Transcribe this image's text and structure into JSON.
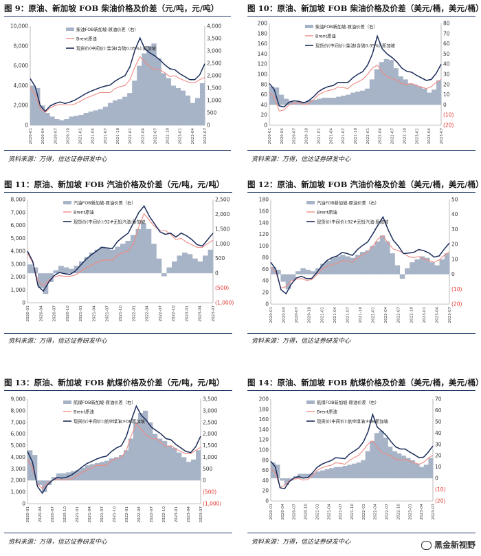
{
  "source_text": "资料来源：万得，信达证券研发中心",
  "watermark": "黑金新视野",
  "colors": {
    "spread": "#a7b3c6",
    "brent": "#f08a82",
    "spot": "#1a2b5a",
    "title_line": "#1f3864",
    "negative_label": "#e0302c"
  },
  "x_labels": [
    "2020-01",
    "2020-04",
    "2020-07",
    "2020-10",
    "2021-01",
    "2021-04",
    "2021-07",
    "2021-10",
    "2022-01",
    "2022-04",
    "2022-07",
    "2022-10",
    "2023-01",
    "2023-04",
    "2023-07"
  ],
  "chart_data": [
    {
      "id": "fig9",
      "type": "area+line",
      "title": "图 9：原油、新加坡 FOB 柴油价格及价差（元/吨，元/吨）",
      "left_ticks": [
        "10,000",
        "8,000",
        "6,000",
        "4,000",
        "2,000",
        "0"
      ],
      "right_ticks": [
        "4,000",
        "3,500",
        "3,000",
        "2,500",
        "2,000",
        "1,500",
        "1,000",
        "500",
        "0"
      ],
      "right_neg_ticks": [],
      "ylim_left": [
        0,
        10000
      ],
      "ylim_right": [
        0,
        4000
      ],
      "legend": [
        "柴油FOB新加坡-原油价差（右）",
        "Brent原油",
        "现货价(中间价):柴油(含硫0.05%):新加坡"
      ],
      "series": [
        {
          "name": "spread",
          "axis": "right",
          "values": [
            1600,
            1500,
            800,
            500,
            350,
            250,
            200,
            250,
            350,
            380,
            420,
            500,
            550,
            600,
            650,
            750,
            900,
            1000,
            1050,
            1150,
            1300,
            1800,
            2400,
            2900,
            3200,
            3300,
            2700,
            2100,
            1900,
            1600,
            1500,
            1400,
            1200,
            900,
            1100,
            1700
          ]
        },
        {
          "name": "brent",
          "axis": "left",
          "values": [
            3850,
            3100,
            1700,
            1300,
            1750,
            2000,
            2100,
            2050,
            2050,
            2150,
            2400,
            2700,
            2900,
            3100,
            3300,
            3300,
            3300,
            3700,
            3900,
            4000,
            4600,
            5900,
            6900,
            6400,
            5900,
            5600,
            5600,
            5300,
            4900,
            5000,
            4700,
            4500,
            4300,
            4300,
            4600,
            4850
          ]
        },
        {
          "name": "spot",
          "axis": "left",
          "values": [
            4700,
            3900,
            2000,
            1400,
            1950,
            2200,
            2350,
            2200,
            2350,
            2550,
            2850,
            3150,
            3400,
            3600,
            3800,
            3950,
            4050,
            4450,
            4750,
            5000,
            5900,
            7600,
            8800,
            7700,
            7300,
            7000,
            6600,
            6100,
            5700,
            5600,
            5200,
            4900,
            4600,
            4600,
            5100,
            6200
          ]
        }
      ]
    },
    {
      "id": "fig10",
      "type": "area+line",
      "title": "图 10：原油、新加坡 FOB 柴油价格及价差（美元/桶，美元/桶）",
      "left_ticks": [
        "200",
        "180",
        "160",
        "140",
        "120",
        "100",
        "80",
        "60",
        "40",
        "20",
        "0"
      ],
      "right_ticks": [
        "80",
        "70",
        "60",
        "50",
        "40",
        "30",
        "20",
        "10",
        "0"
      ],
      "right_neg_ticks": [
        "(10)",
        "(20)"
      ],
      "ylim_left": [
        0,
        200
      ],
      "ylim_right": [
        -20,
        80
      ],
      "legend": [
        "柴油FOB新加坡-原油价差（右）",
        "Brent原油",
        "现货价(中间价):柴油(含硫0.05%):新加坡"
      ],
      "series": [
        {
          "name": "spread",
          "axis": "right",
          "values": [
            18,
            17,
            10,
            6,
            4,
            3,
            3,
            3,
            5,
            5,
            6,
            7,
            7,
            7,
            8,
            9,
            10,
            12,
            13,
            14,
            16,
            25,
            35,
            42,
            45,
            44,
            36,
            28,
            25,
            21,
            20,
            18,
            16,
            12,
            15,
            24
          ]
        },
        {
          "name": "brent",
          "axis": "left",
          "values": [
            64,
            55,
            28,
            30,
            40,
            43,
            44,
            41,
            42,
            50,
            60,
            65,
            68,
            70,
            75,
            74,
            72,
            80,
            85,
            90,
            100,
            112,
            118,
            105,
            95,
            92,
            88,
            82,
            80,
            82,
            78,
            75,
            72,
            76,
            84,
            90
          ]
        },
        {
          "name": "spot",
          "axis": "left",
          "values": [
            82,
            70,
            38,
            36,
            45,
            48,
            47,
            44,
            48,
            56,
            66,
            72,
            76,
            78,
            84,
            84,
            84,
            93,
            100,
            105,
            118,
            140,
            175,
            150,
            140,
            133,
            124,
            112,
            106,
            104,
            98,
            93,
            88,
            90,
            102,
            120
          ]
        }
      ]
    },
    {
      "id": "fig11",
      "type": "area+line",
      "title": "图 11：原油、新加坡 FOB 汽油价格及价差（元/吨，元/吨）",
      "left_ticks": [
        "8,000",
        "7,000",
        "6,000",
        "5,000",
        "4,000",
        "3,000",
        "2,000",
        "1,000",
        "0"
      ],
      "right_ticks": [
        "2,500",
        "2,000",
        "1,500",
        "1,000",
        "500",
        "0"
      ],
      "right_neg_ticks": [
        "(500)",
        "(1,000)"
      ],
      "ylim_left": [
        0,
        8000
      ],
      "ylim_right": [
        -1000,
        2500
      ],
      "legend": [
        "汽油FOB新加坡-原油价差（右）",
        "Brent原油",
        "现货价(中间价):92#无铅汽油:新加坡"
      ],
      "series": [
        {
          "name": "spread",
          "axis": "right",
          "values": [
            300,
            200,
            -500,
            -700,
            -300,
            100,
            250,
            200,
            150,
            250,
            400,
            550,
            700,
            800,
            900,
            850,
            800,
            900,
            1000,
            1100,
            1300,
            1500,
            1700,
            1500,
            1000,
            500,
            -100,
            200,
            400,
            600,
            700,
            650,
            500,
            400,
            600,
            800
          ]
        },
        {
          "name": "brent",
          "axis": "left",
          "values": [
            3850,
            3100,
            1700,
            1300,
            1750,
            2000,
            2100,
            2050,
            2050,
            2150,
            2400,
            2700,
            2900,
            3100,
            3300,
            3300,
            3300,
            3700,
            3900,
            4000,
            4600,
            5900,
            6900,
            6400,
            5900,
            5600,
            5600,
            5300,
            4900,
            5000,
            4700,
            4500,
            4300,
            4300,
            4600,
            4850
          ]
        },
        {
          "name": "spot",
          "axis": "left",
          "values": [
            4000,
            3200,
            1300,
            900,
            1600,
            2100,
            2350,
            2250,
            2200,
            2450,
            2900,
            3350,
            3700,
            4000,
            4300,
            4250,
            4200,
            4750,
            5100,
            5400,
            6200,
            7000,
            7500,
            6700,
            6100,
            5500,
            5300,
            5400,
            5100,
            5400,
            5200,
            4900,
            4500,
            4400,
            4900,
            5400
          ]
        }
      ]
    },
    {
      "id": "fig12",
      "type": "area+line",
      "title": "图 12：原油、新加坡 FOB 汽油价格及价差（美元/桶，美元/桶）",
      "left_ticks": [
        "180",
        "160",
        "140",
        "120",
        "100",
        "80",
        "60",
        "40",
        "20",
        "0"
      ],
      "right_ticks": [
        "50",
        "40",
        "30",
        "20",
        "10",
        "0"
      ],
      "right_neg_ticks": [
        "(10)",
        "(20)"
      ],
      "ylim_left": [
        0,
        180
      ],
      "ylim_right": [
        -20,
        50
      ],
      "legend": [
        "汽油FOB新加坡-原油价差（右）",
        "Brent原油",
        "现货价(中间价):92#无铅汽油:新加坡"
      ],
      "series": [
        {
          "name": "spread",
          "axis": "right",
          "values": [
            5,
            3,
            -5,
            -10,
            -4,
            2,
            4,
            3,
            2,
            4,
            7,
            9,
            11,
            12,
            13,
            12,
            11,
            13,
            15,
            16,
            19,
            22,
            26,
            22,
            14,
            6,
            -3,
            4,
            8,
            10,
            12,
            11,
            8,
            6,
            10,
            14
          ]
        },
        {
          "name": "brent",
          "axis": "left",
          "values": [
            64,
            55,
            28,
            30,
            40,
            43,
            44,
            41,
            42,
            50,
            60,
            65,
            68,
            70,
            75,
            74,
            72,
            80,
            85,
            90,
            100,
            112,
            118,
            105,
            95,
            92,
            88,
            82,
            80,
            82,
            78,
            75,
            72,
            76,
            84,
            90
          ]
        },
        {
          "name": "spot",
          "axis": "left",
          "values": [
            72,
            60,
            25,
            18,
            34,
            45,
            48,
            44,
            44,
            54,
            66,
            75,
            80,
            83,
            89,
            87,
            84,
            94,
            101,
            107,
            121,
            136,
            150,
            128,
            110,
            100,
            87,
            88,
            89,
            94,
            92,
            88,
            81,
            83,
            95,
            105
          ]
        }
      ]
    },
    {
      "id": "fig13",
      "type": "area+line",
      "title": "图 13：原油、新加坡 FOB 航煤价格及价差（元/吨，元/吨）",
      "left_ticks": [
        "9,000",
        "8,000",
        "7,000",
        "6,000",
        "5,000",
        "4,000",
        "3,000",
        "2,000",
        "1,000",
        "0"
      ],
      "right_ticks": [
        "3,500",
        "3,000",
        "2,500",
        "2,000",
        "1,500",
        "1,000",
        "500",
        "0"
      ],
      "right_neg_ticks": [
        "(500)",
        "(1,000)"
      ],
      "ylim_left": [
        0,
        9000
      ],
      "ylim_right": [
        -1000,
        3500
      ],
      "legend": [
        "航煤FOB新加坡-原油价差（右）",
        "Brent原油",
        "现货价(中间价):航空煤油:FOB新加坡"
      ],
      "series": [
        {
          "name": "spread",
          "axis": "right",
          "values": [
            1300,
            1100,
            -200,
            -500,
            -200,
            150,
            300,
            300,
            350,
            400,
            450,
            550,
            650,
            700,
            750,
            800,
            850,
            950,
            1000,
            1100,
            1300,
            1800,
            2500,
            2900,
            3000,
            2500,
            2000,
            1800,
            1700,
            1500,
            1400,
            1200,
            1000,
            800,
            900,
            1300
          ]
        },
        {
          "name": "brent",
          "axis": "left",
          "values": [
            3850,
            3100,
            1700,
            1300,
            1750,
            2000,
            2100,
            2050,
            2050,
            2150,
            2400,
            2700,
            2900,
            3100,
            3300,
            3300,
            3300,
            3700,
            3900,
            4000,
            4600,
            5900,
            6900,
            6400,
            5900,
            5600,
            5600,
            5300,
            4900,
            5000,
            4700,
            4500,
            4300,
            4300,
            4600,
            4850
          ]
        },
        {
          "name": "spot",
          "axis": "left",
          "values": [
            4500,
            3600,
            1500,
            900,
            1600,
            2000,
            2250,
            2200,
            2300,
            2500,
            2800,
            3150,
            3450,
            3650,
            3850,
            4000,
            4100,
            4500,
            4800,
            5000,
            5800,
            7200,
            8400,
            7600,
            7200,
            6600,
            6300,
            6000,
            5600,
            5500,
            5100,
            4800,
            4500,
            4400,
            4900,
            5800
          ]
        }
      ]
    },
    {
      "id": "fig14",
      "type": "area+line",
      "title": "图 14：原油、新加坡 FOB 航煤价格及价差（美元/桶，美元/桶）",
      "left_ticks": [
        "200",
        "180",
        "160",
        "140",
        "120",
        "100",
        "80",
        "60",
        "40",
        "20",
        "0"
      ],
      "right_ticks": [
        "70",
        "60",
        "50",
        "40",
        "30",
        "20",
        "10",
        "0"
      ],
      "right_neg_ticks": [
        "(10)",
        "(20)"
      ],
      "ylim_left": [
        0,
        200
      ],
      "ylim_right": [
        -20,
        70
      ],
      "legend": [
        "航煤FOB新加坡-原油价差（右）",
        "Brent原油",
        "现货价(中间价):航空煤油:FOB新加坡"
      ],
      "series": [
        {
          "name": "spread",
          "axis": "right",
          "values": [
            14,
            12,
            -2,
            -6,
            -2,
            2,
            4,
            4,
            4,
            5,
            6,
            7,
            8,
            9,
            10,
            10,
            11,
            12,
            13,
            14,
            16,
            24,
            33,
            40,
            42,
            36,
            28,
            24,
            22,
            20,
            18,
            16,
            13,
            10,
            12,
            18
          ]
        },
        {
          "name": "brent",
          "axis": "left",
          "values": [
            64,
            55,
            28,
            30,
            40,
            43,
            44,
            41,
            42,
            50,
            60,
            65,
            68,
            70,
            75,
            74,
            72,
            80,
            85,
            90,
            100,
            112,
            118,
            105,
            95,
            92,
            88,
            82,
            80,
            82,
            78,
            75,
            72,
            76,
            84,
            90
          ]
        },
        {
          "name": "spot",
          "axis": "left",
          "values": [
            78,
            67,
            26,
            24,
            38,
            45,
            48,
            45,
            46,
            55,
            66,
            72,
            76,
            79,
            85,
            84,
            83,
            92,
            98,
            104,
            116,
            136,
            170,
            145,
            137,
            128,
            116,
            106,
            102,
            102,
            96,
            91,
            85,
            86,
            96,
            108
          ]
        }
      ]
    }
  ]
}
